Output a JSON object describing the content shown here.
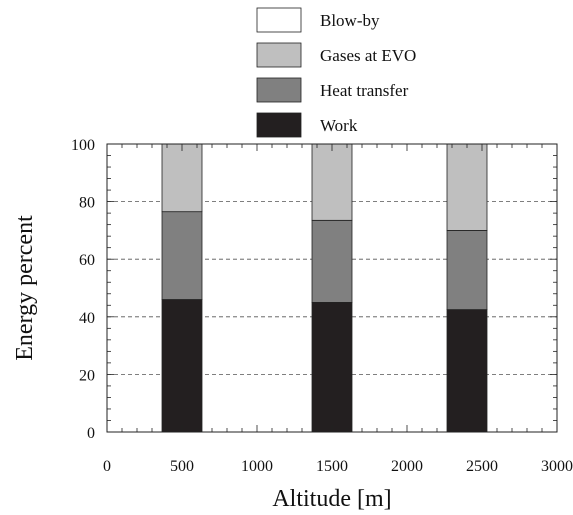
{
  "chart_data": {
    "type": "bar",
    "stacked": true,
    "categories": [
      "500",
      "1500",
      "2400"
    ],
    "x": [
      500,
      1500,
      2400
    ],
    "series": [
      {
        "name": "Work",
        "values": [
          46,
          45,
          42.5
        ],
        "color": "#231f20"
      },
      {
        "name": "Heat transfer",
        "values": [
          30.5,
          28.5,
          27.5
        ],
        "color": "#808080"
      },
      {
        "name": "Gases at EVO",
        "values": [
          23.5,
          26.5,
          30
        ],
        "color": "#bfbfbf"
      },
      {
        "name": "Blow-by",
        "values": [
          0,
          0,
          0
        ],
        "color": "#ffffff"
      }
    ],
    "xlabel": "Altitude [m]",
    "ylabel": "Energy percent",
    "xlim": [
      0,
      3000
    ],
    "ylim": [
      0,
      100
    ],
    "xticks": [
      0,
      500,
      1000,
      1500,
      2000,
      2500,
      3000
    ],
    "yticks": [
      0,
      20,
      40,
      60,
      80,
      100
    ],
    "grid": "horizontal dashed",
    "legend_position": "top",
    "legend_order": [
      "Blow-by",
      "Gases at EVO",
      "Heat transfer",
      "Work"
    ]
  }
}
